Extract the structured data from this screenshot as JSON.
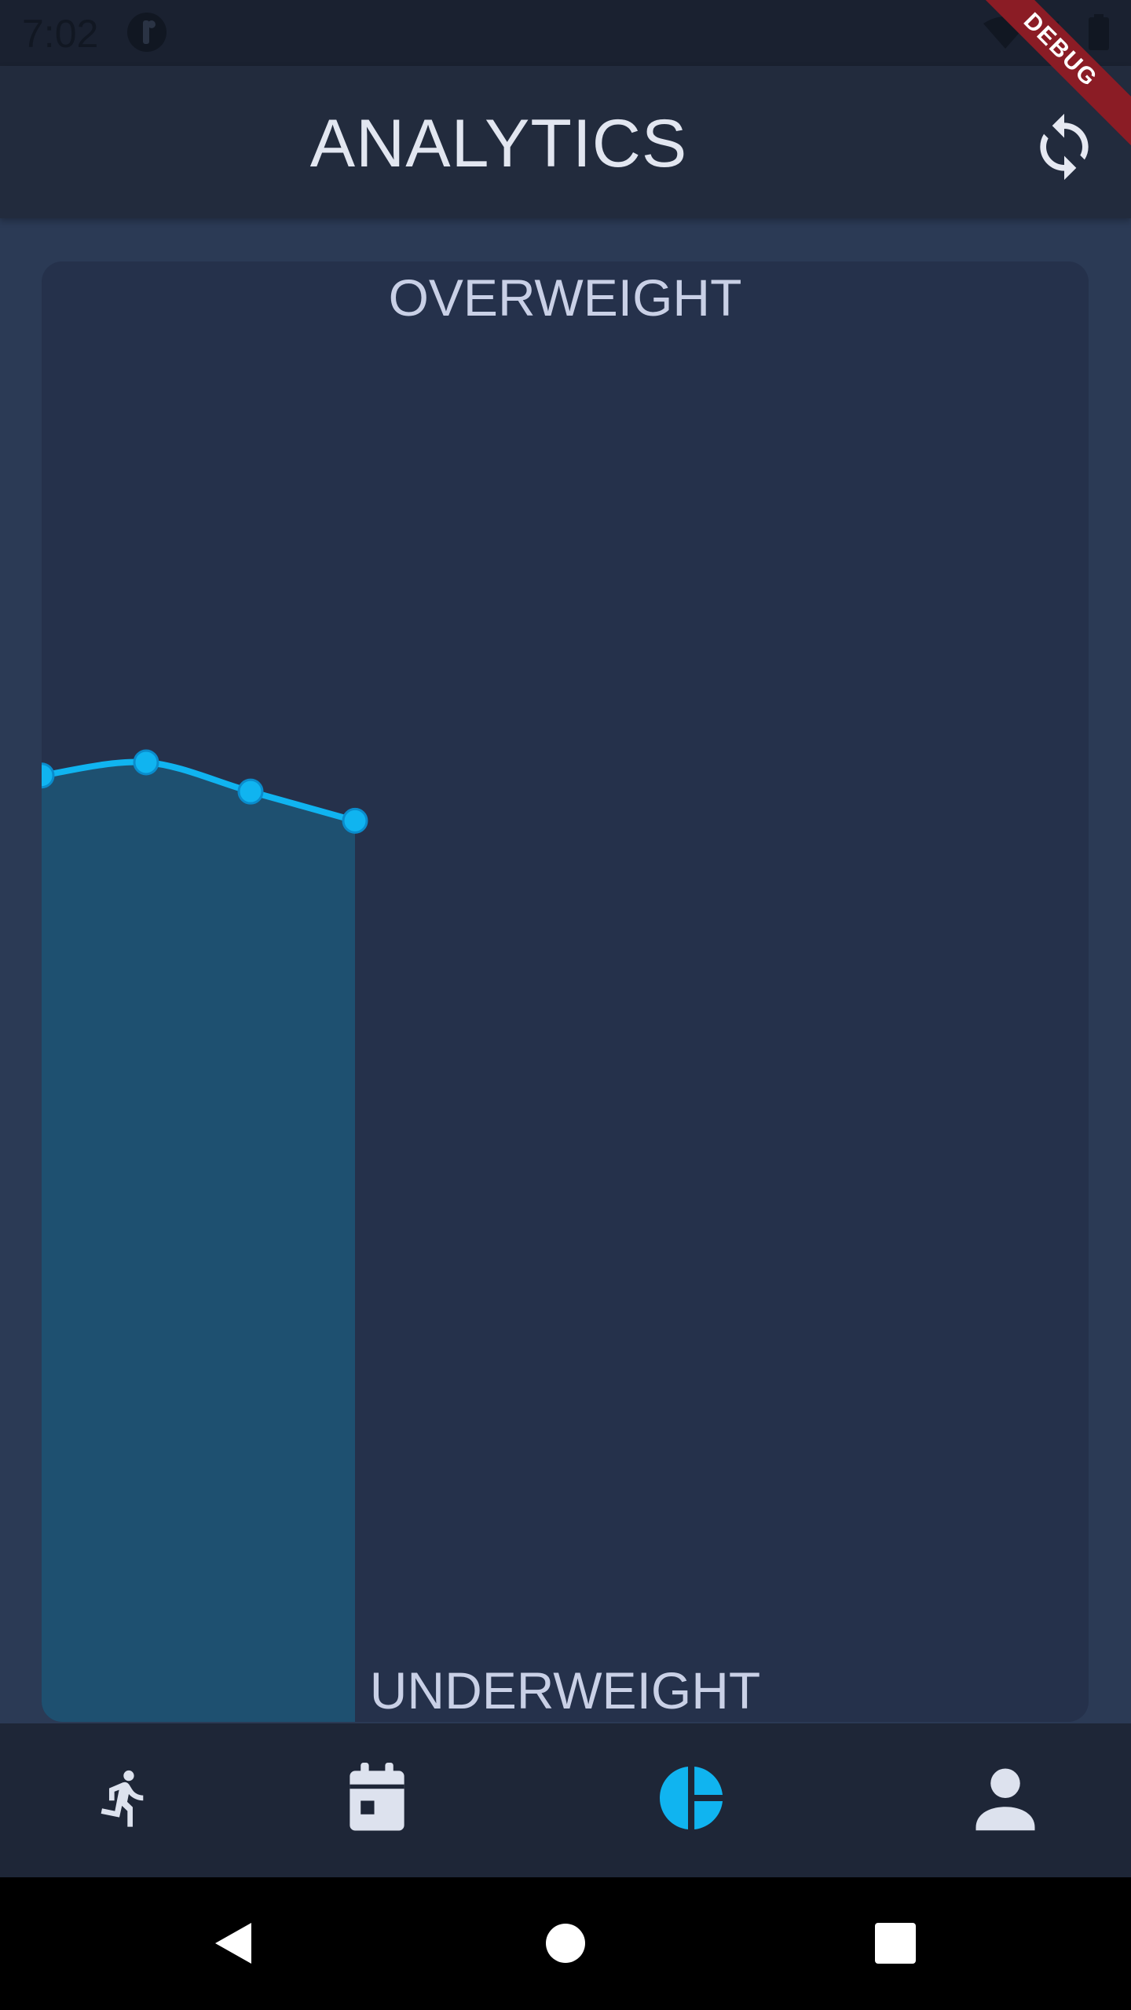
{
  "status_bar": {
    "time": "7:02",
    "signal_glyph": "4"
  },
  "app_bar": {
    "title": "ANALYTICS",
    "refresh_icon": "refresh-icon"
  },
  "debug_banner": {
    "label": "DEBUG"
  },
  "chart": {
    "top_label": "OVERWEIGHT",
    "bottom_label": "UNDERWEIGHT"
  },
  "chart_data": {
    "type": "area",
    "x": [
      0,
      1,
      2,
      3
    ],
    "y": [
      0.648,
      0.657,
      0.637,
      0.617
    ],
    "ylim": [
      0,
      1
    ],
    "y_top_label": "OVERWEIGHT",
    "y_bottom_label": "UNDERWEIGHT",
    "x_points_visible": 4,
    "x_span_total": 12,
    "line_color": "#10b4f0",
    "fill_color": "#1e5070",
    "grid": false
  },
  "bottom_nav": {
    "items": [
      {
        "name": "run",
        "icon": "running-icon",
        "active": false
      },
      {
        "name": "calendar",
        "icon": "calendar-icon",
        "active": false
      },
      {
        "name": "analytics",
        "icon": "pie-chart-icon",
        "active": true
      },
      {
        "name": "profile",
        "icon": "person-icon",
        "active": false
      }
    ],
    "active_color": "#10b4f0",
    "inactive_color": "#dde2ee"
  },
  "system_nav": {
    "back": "back-icon",
    "home": "home-icon",
    "recents": "recents-icon"
  }
}
